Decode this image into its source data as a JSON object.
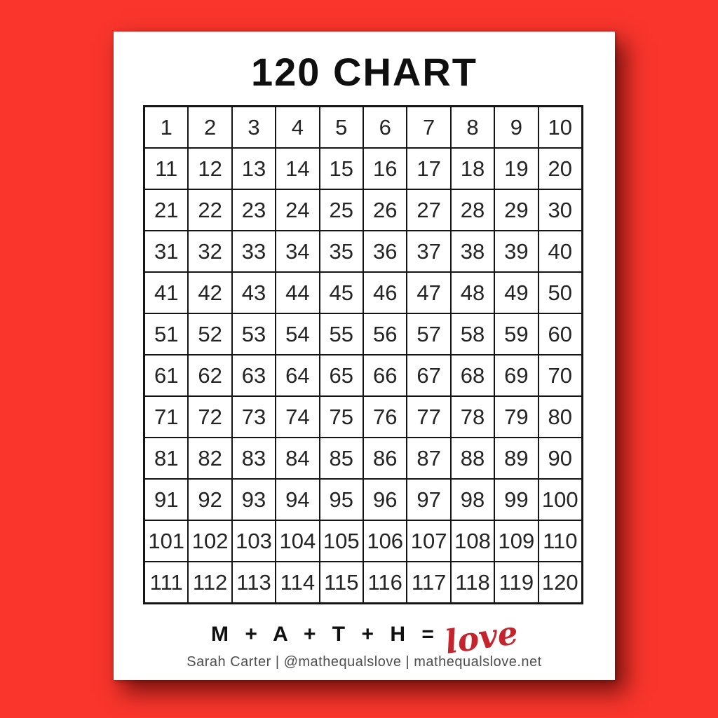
{
  "page": {
    "title": "120 CHART"
  },
  "grid": {
    "rows": 12,
    "cols": 10,
    "numbers": [
      1,
      2,
      3,
      4,
      5,
      6,
      7,
      8,
      9,
      10,
      11,
      12,
      13,
      14,
      15,
      16,
      17,
      18,
      19,
      20,
      21,
      22,
      23,
      24,
      25,
      26,
      27,
      28,
      29,
      30,
      31,
      32,
      33,
      34,
      35,
      36,
      37,
      38,
      39,
      40,
      41,
      42,
      43,
      44,
      45,
      46,
      47,
      48,
      49,
      50,
      51,
      52,
      53,
      54,
      55,
      56,
      57,
      58,
      59,
      60,
      61,
      62,
      63,
      64,
      65,
      66,
      67,
      68,
      69,
      70,
      71,
      72,
      73,
      74,
      75,
      76,
      77,
      78,
      79,
      80,
      81,
      82,
      83,
      84,
      85,
      86,
      87,
      88,
      89,
      90,
      91,
      92,
      93,
      94,
      95,
      96,
      97,
      98,
      99,
      100,
      101,
      102,
      103,
      104,
      105,
      106,
      107,
      108,
      109,
      110,
      111,
      112,
      113,
      114,
      115,
      116,
      117,
      118,
      119,
      120
    ]
  },
  "footer": {
    "equation": "M + A + T + H =",
    "love_word": "love",
    "attribution": "Sarah Carter | @mathequalslove | mathequalslove.net"
  },
  "colors": {
    "background_red": "#f9352c",
    "paper_white": "#ffffff",
    "grid_line_black": "#151515",
    "love_script_red": "#c4242b",
    "attribution_gray": "#4e4e4e"
  }
}
